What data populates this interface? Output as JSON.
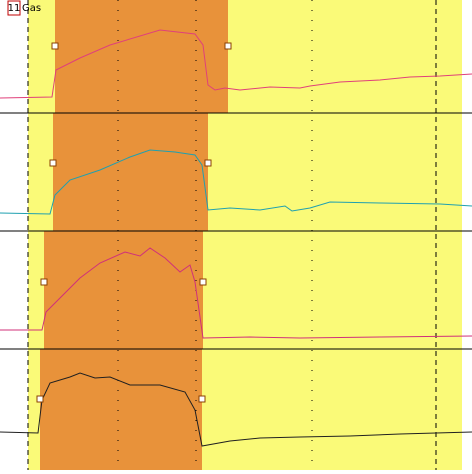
{
  "label": {
    "number": "11",
    "name": "Gas"
  }
}
